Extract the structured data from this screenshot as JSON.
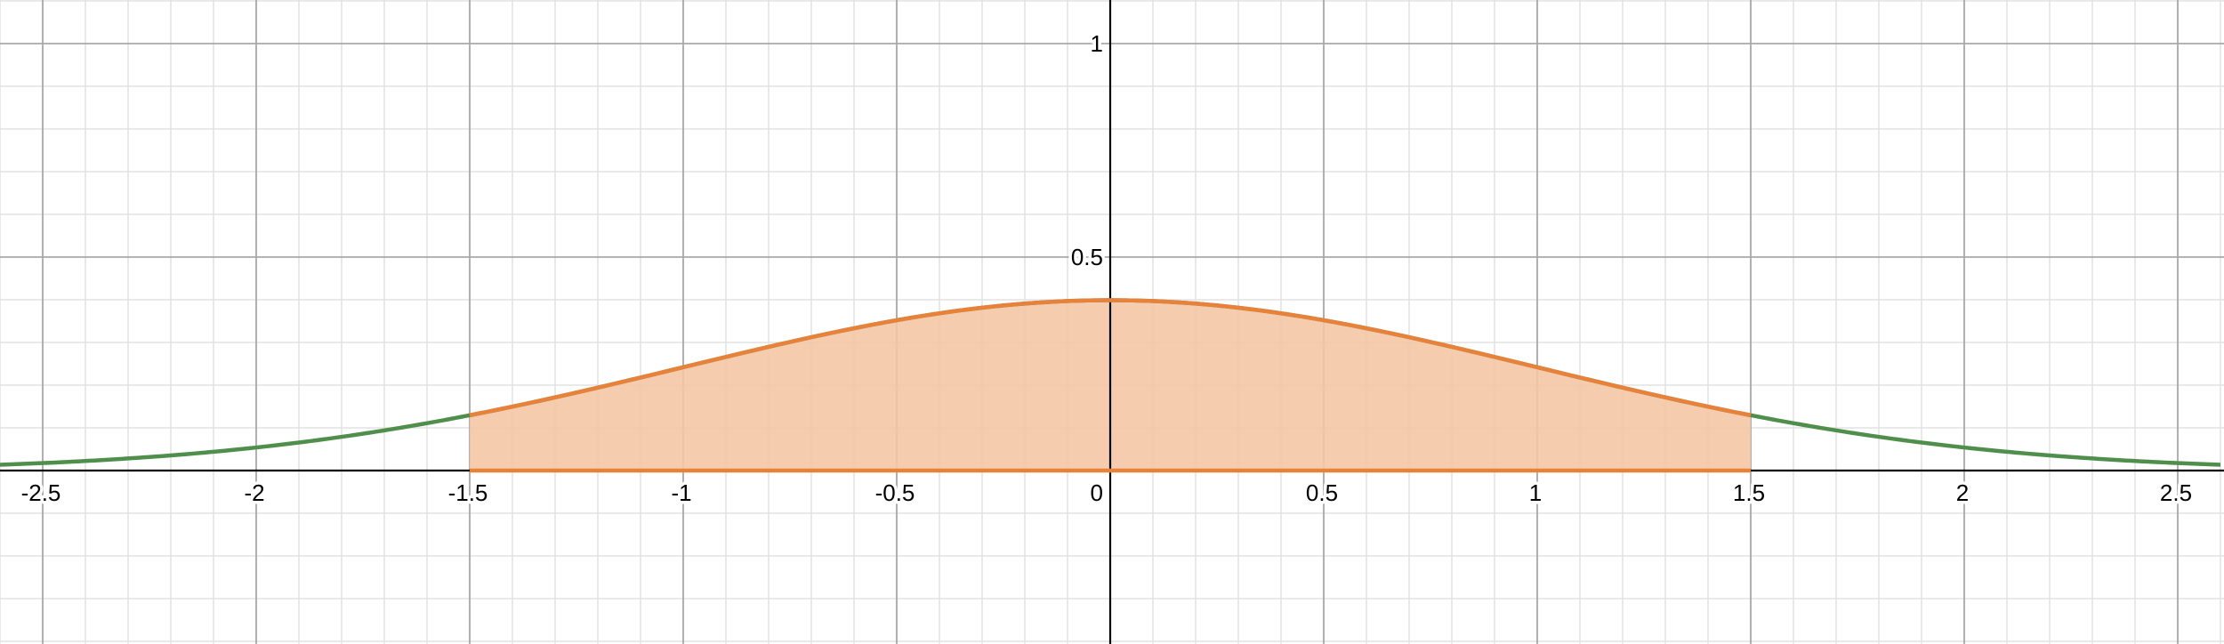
{
  "chart_data": {
    "type": "line",
    "title": "",
    "xlabel": "",
    "ylabel": "",
    "xlim": [
      -2.6,
      2.6
    ],
    "ylim": [
      -0.4,
      1.1
    ],
    "grid": true,
    "minor_grid_step": 0.1,
    "major_grid_step": 0.5,
    "x_ticks": [
      {
        "value": -2.5,
        "label": "-2.5"
      },
      {
        "value": -2,
        "label": "-2"
      },
      {
        "value": -1.5,
        "label": "-1.5"
      },
      {
        "value": -1,
        "label": "-1"
      },
      {
        "value": -0.5,
        "label": "-0.5"
      },
      {
        "value": 0,
        "label": "0"
      },
      {
        "value": 0.5,
        "label": "0.5"
      },
      {
        "value": 1,
        "label": "1"
      },
      {
        "value": 1.5,
        "label": "1.5"
      },
      {
        "value": 2,
        "label": "2"
      },
      {
        "value": 2.5,
        "label": "2.5"
      }
    ],
    "y_ticks": [
      {
        "value": 0.5,
        "label": "0.5"
      },
      {
        "value": 1,
        "label": "1"
      }
    ],
    "series": [
      {
        "color": "#4f8f4b",
        "x": [
          -2.6,
          -2.5,
          -2.25,
          -2.0,
          -1.75,
          -1.5,
          -1.25,
          -1.0,
          -0.75,
          -0.5,
          -0.25,
          0.0,
          0.25,
          0.5,
          0.75,
          1.0,
          1.25,
          1.5,
          1.75,
          2.0,
          2.25,
          2.5,
          2.6
        ],
        "y": [
          0.0136,
          0.0175,
          0.0317,
          0.054,
          0.0863,
          0.1295,
          0.1826,
          0.242,
          0.3011,
          0.3521,
          0.3867,
          0.3989,
          0.3867,
          0.3521,
          0.3011,
          0.242,
          0.1826,
          0.1295,
          0.0863,
          0.054,
          0.0317,
          0.0175,
          0.0136
        ]
      },
      {
        "color": "#e8823a",
        "fill_color": "#f5c6a5",
        "x_from": -1.5,
        "x_to": 1.5,
        "x": [
          -1.5,
          -1.25,
          -1.0,
          -0.75,
          -0.5,
          -0.25,
          0.0,
          0.25,
          0.5,
          0.75,
          1.0,
          1.25,
          1.5
        ],
        "y": [
          0.1295,
          0.1826,
          0.242,
          0.3011,
          0.3521,
          0.3867,
          0.3989,
          0.3867,
          0.3521,
          0.3011,
          0.242,
          0.1826,
          0.1295
        ]
      }
    ],
    "colors": {
      "minor_grid": "#e2e2e2",
      "major_grid": "#a8a8a8",
      "axis": "#000000"
    }
  }
}
